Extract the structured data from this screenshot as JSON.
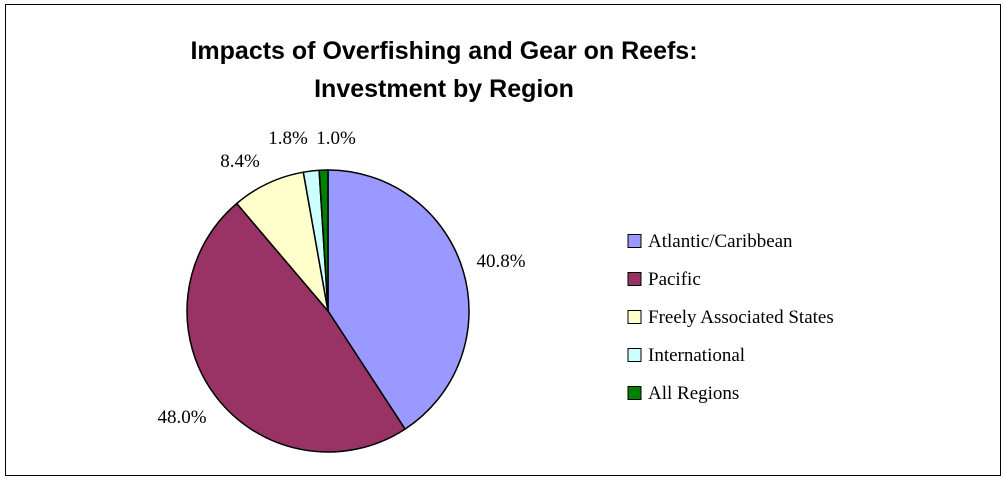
{
  "chart_data": {
    "type": "pie",
    "title_lines": [
      "Impacts of Overfishing and Gear on Reefs:",
      "Investment by Region"
    ],
    "categories": [
      "Atlantic/Caribbean",
      "Pacific",
      "Freely Associated States",
      "International",
      "All Regions"
    ],
    "values": [
      40.8,
      48.0,
      8.4,
      1.8,
      1.0
    ],
    "labels": [
      "40.8%",
      "48.0%",
      "8.4%",
      "1.8%",
      "1.0%"
    ],
    "colors": [
      "#9999ff",
      "#993366",
      "#ffffcc",
      "#ccffff",
      "#008000"
    ],
    "start_angle": "12 o'clock",
    "direction": "clockwise",
    "legend_position": "right"
  }
}
